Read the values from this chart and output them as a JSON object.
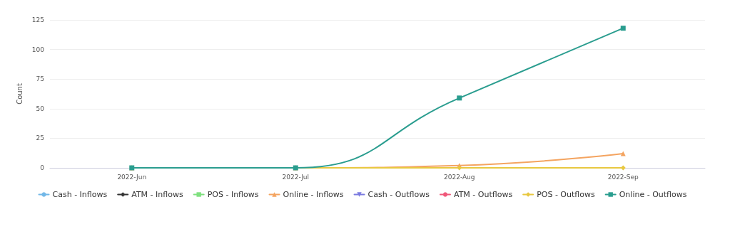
{
  "chart_data": {
    "type": "line",
    "ylabel": "Count",
    "categories": [
      "2022-Jun",
      "2022-Jul",
      "2022-Aug",
      "2022-Sep"
    ],
    "series": [
      {
        "name": "Cash - Inflows",
        "color": "#73b8e8",
        "marker": "circle",
        "values": [
          null,
          null,
          null,
          null
        ]
      },
      {
        "name": "ATM - Inflows",
        "color": "#333333",
        "marker": "diamond",
        "values": [
          null,
          null,
          null,
          null
        ]
      },
      {
        "name": "POS - Inflows",
        "color": "#7fe07f",
        "marker": "square",
        "values": [
          null,
          null,
          null,
          null
        ]
      },
      {
        "name": "Online - Inflows",
        "color": "#f4a460",
        "marker": "triangle",
        "values": [
          0,
          0,
          2,
          12
        ]
      },
      {
        "name": "Cash - Outflows",
        "color": "#7b7be0",
        "marker": "triangle-down",
        "values": [
          null,
          null,
          null,
          null
        ]
      },
      {
        "name": "ATM - Outflows",
        "color": "#f0587a",
        "marker": "circle",
        "values": [
          null,
          null,
          null,
          null
        ]
      },
      {
        "name": "POS - Outflows",
        "color": "#e8c840",
        "marker": "diamond",
        "values": [
          0,
          0,
          0,
          0
        ]
      },
      {
        "name": "Online - Outflows",
        "color": "#2a9d8f",
        "marker": "square",
        "values": [
          0,
          0,
          59,
          118
        ]
      }
    ],
    "ylim": [
      0,
      125
    ],
    "yticks": [
      0,
      25,
      50,
      75,
      100,
      125
    ],
    "grid": "y",
    "legend": "bottom",
    "line_style": "solid"
  }
}
